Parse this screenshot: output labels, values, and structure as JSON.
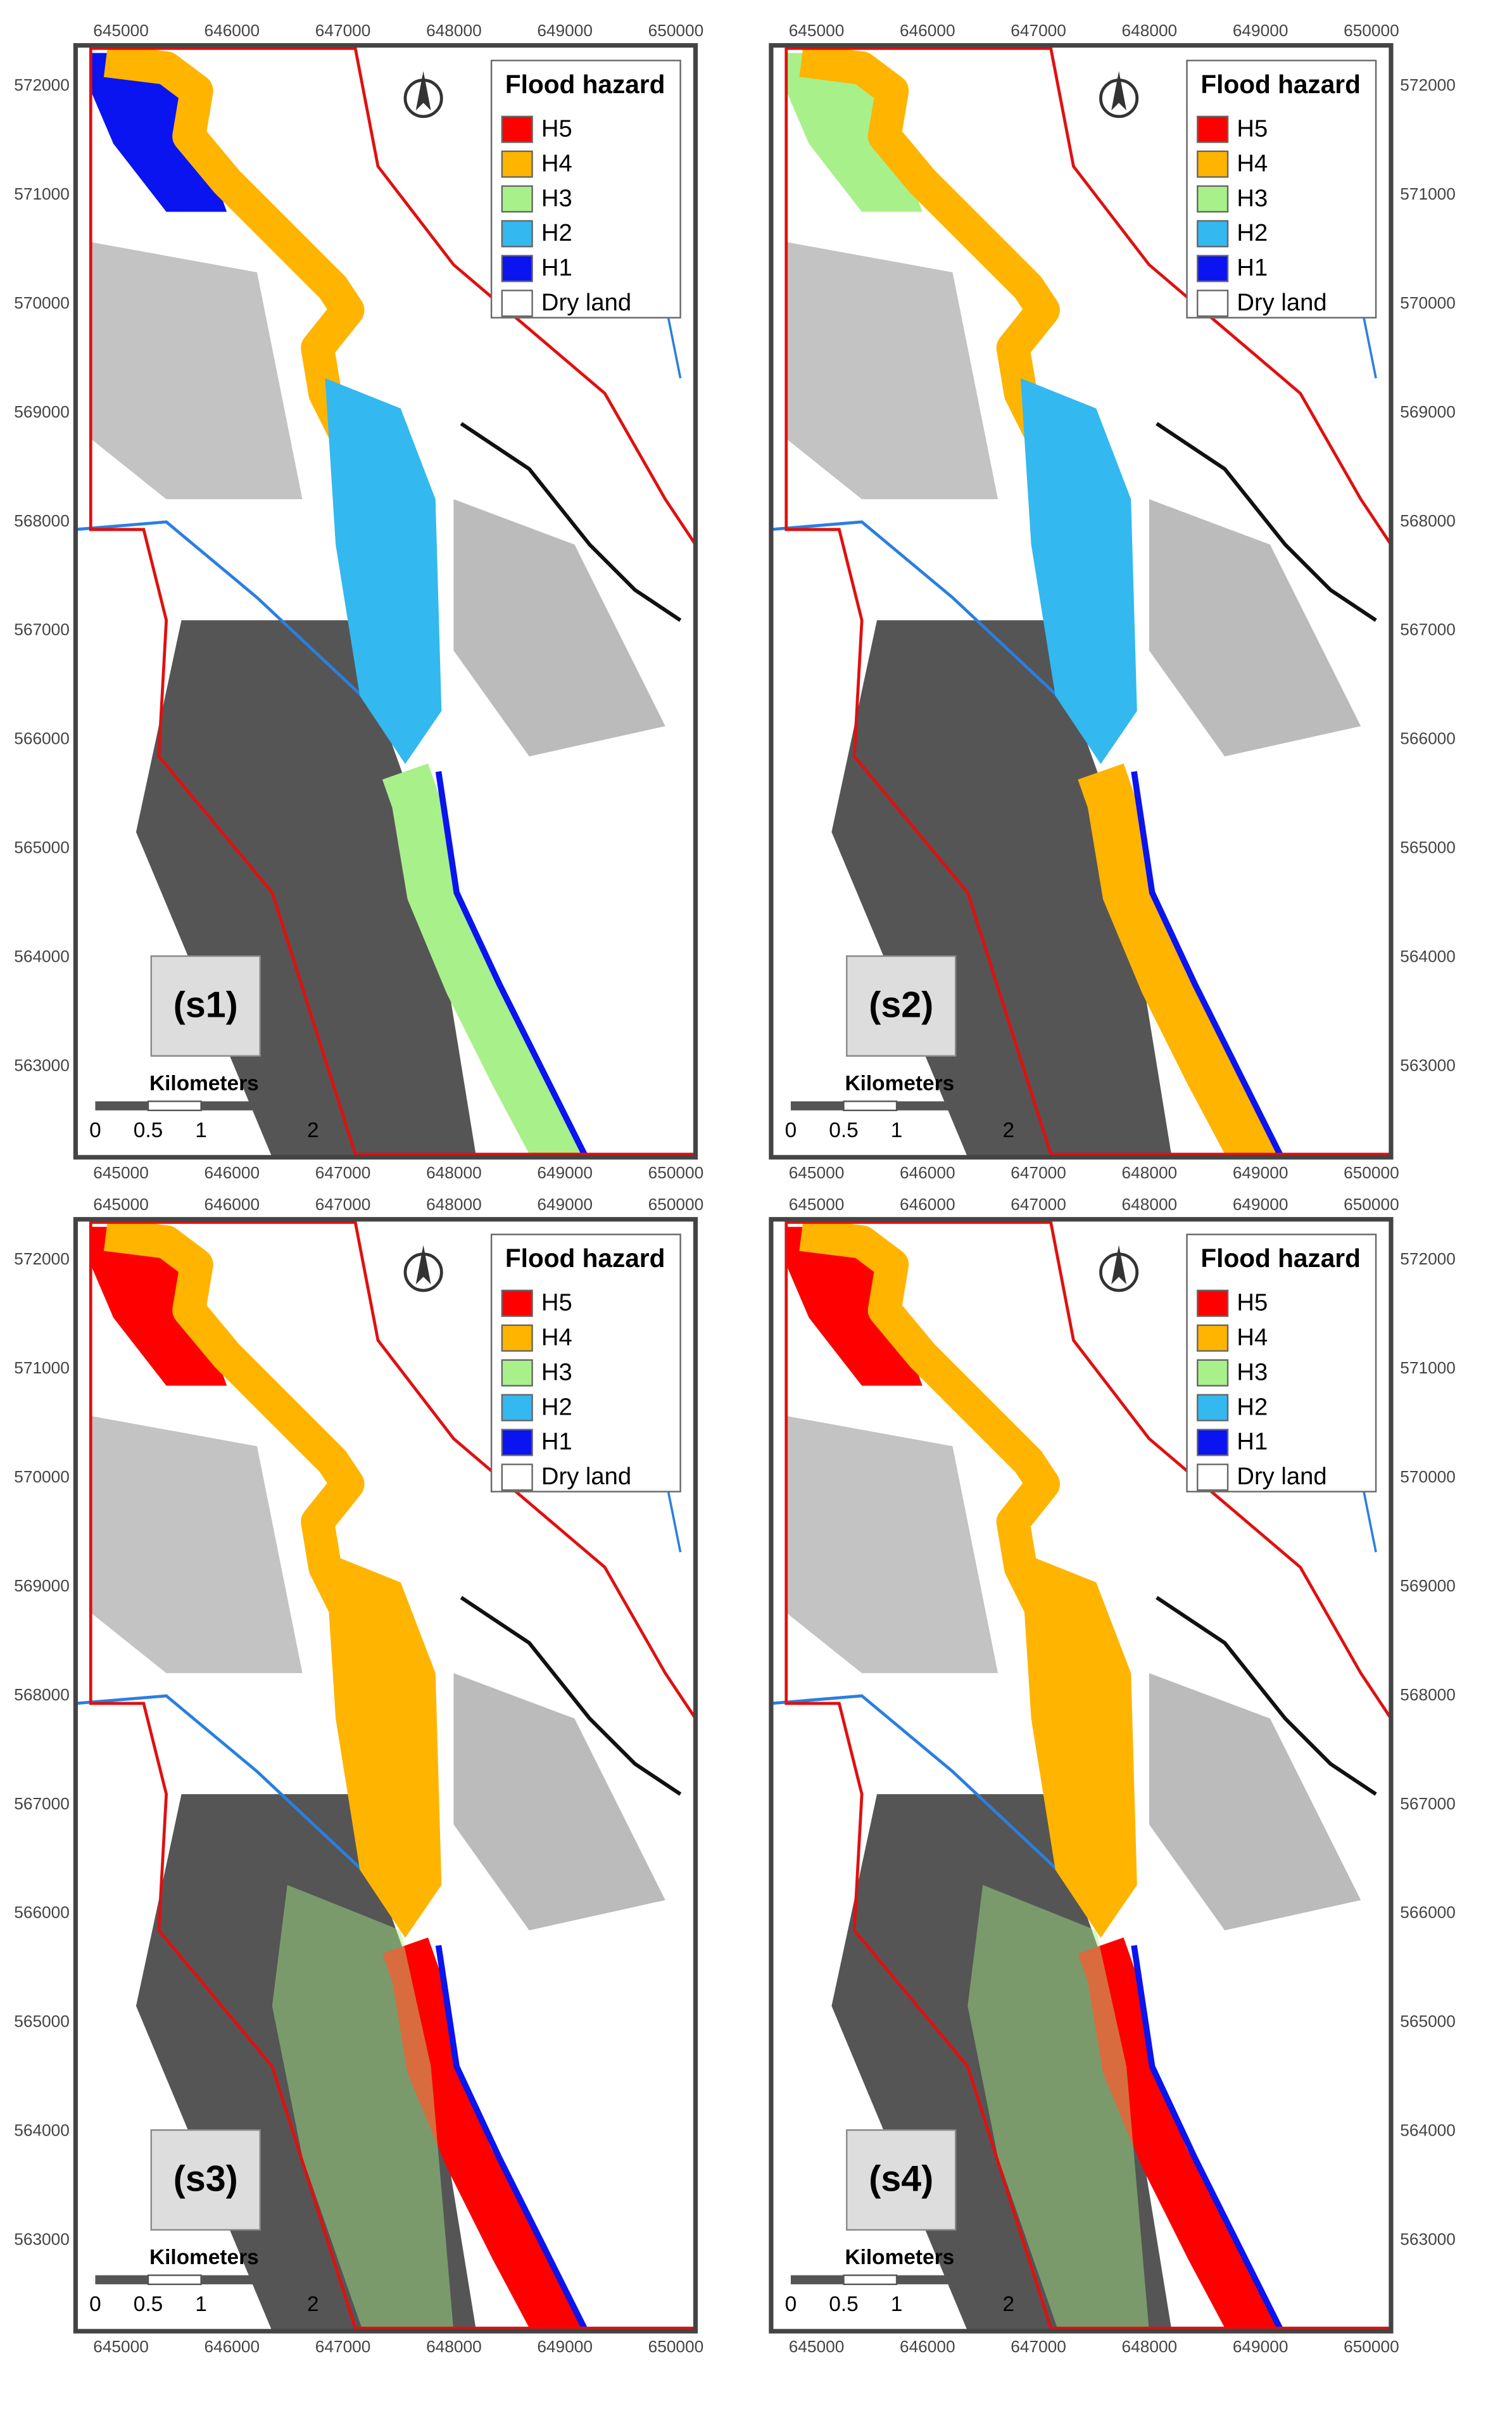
{
  "x_ticks": [
    "645000",
    "646000",
    "647000",
    "648000",
    "649000",
    "650000"
  ],
  "y_ticks": [
    "572000",
    "571000",
    "570000",
    "569000",
    "568000",
    "567000",
    "566000",
    "565000",
    "564000",
    "563000"
  ],
  "legend": {
    "title": "Flood hazard",
    "items": [
      {
        "label": "H5",
        "color": "#ff0000"
      },
      {
        "label": "H4",
        "color": "#ffb400"
      },
      {
        "label": "H3",
        "color": "#a8f08a"
      },
      {
        "label": "H2",
        "color": "#33b8f0"
      },
      {
        "label": "H1",
        "color": "#0a14f0"
      },
      {
        "label": "Dry land",
        "color": "#ffffff"
      }
    ]
  },
  "scale_bar": {
    "title": "Kilometers",
    "labels": [
      "0",
      "0.5",
      "1",
      "2"
    ]
  },
  "panels": [
    {
      "label": "(s1)"
    },
    {
      "label": "(s2)"
    },
    {
      "label": "(s3)"
    },
    {
      "label": "(s4)"
    }
  ]
}
